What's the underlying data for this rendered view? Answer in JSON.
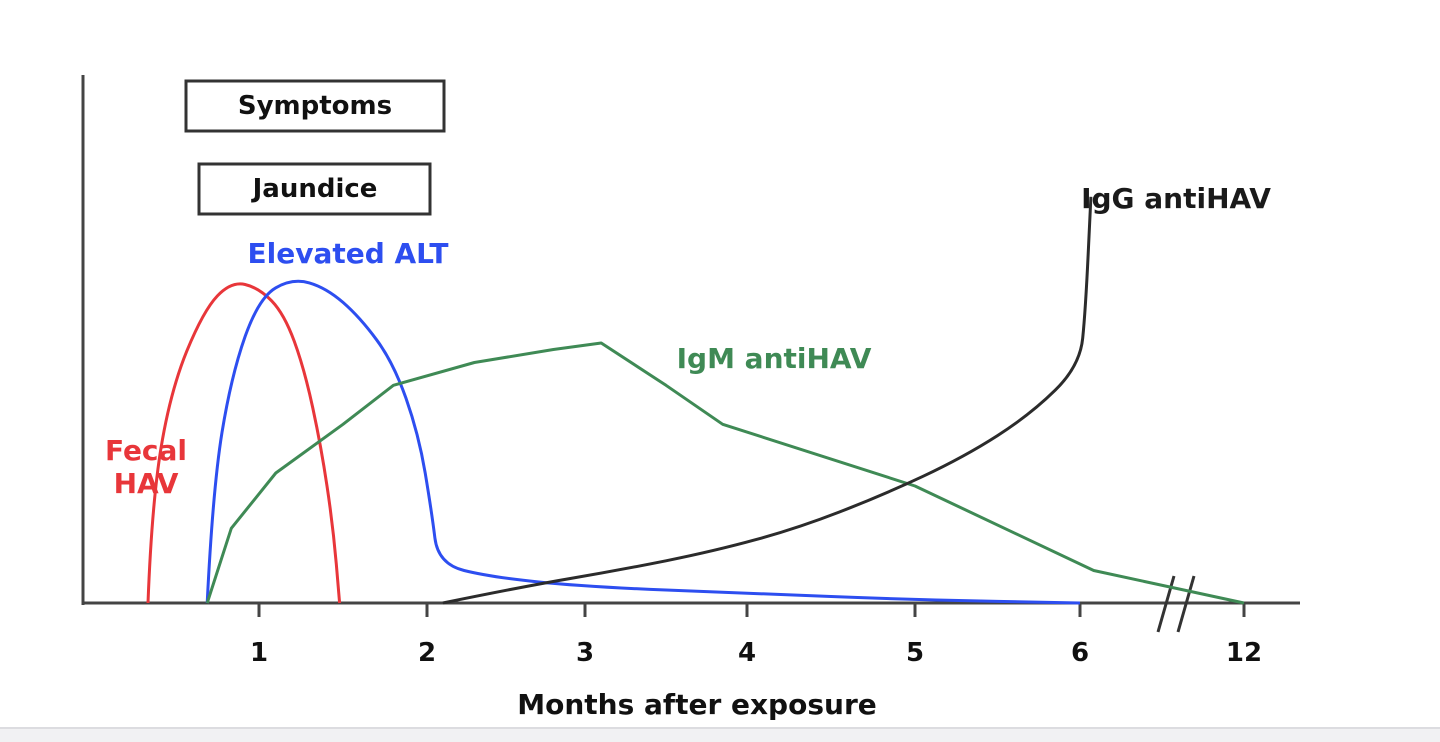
{
  "chart_data": {
    "type": "line",
    "xlabel": "Months after exposure",
    "ylabel": "",
    "x_ticks": [
      "1",
      "2",
      "3",
      "4",
      "5",
      "6",
      "12"
    ],
    "axis_break_between": [
      "6",
      "12"
    ],
    "boxes": [
      {
        "label": "Symptoms"
      },
      {
        "label": "Jaundice"
      }
    ],
    "series": [
      {
        "name": "Fecal HAV",
        "label_lines": [
          "Fecal",
          "HAV"
        ],
        "color": "#e8363a",
        "points": [
          [
            0.4,
            0
          ],
          [
            0.42,
            0.3
          ],
          [
            0.52,
            0.65
          ],
          [
            0.7,
            0.9
          ],
          [
            0.85,
            0.99
          ],
          [
            1.0,
            0.97
          ],
          [
            1.15,
            0.89
          ],
          [
            1.27,
            0.72
          ],
          [
            1.37,
            0.48
          ],
          [
            1.44,
            0.24
          ],
          [
            1.48,
            0
          ]
        ]
      },
      {
        "name": "Elevated ALT",
        "color": "#2d4ef0",
        "points": [
          [
            0.72,
            0
          ],
          [
            0.75,
            0.35
          ],
          [
            0.85,
            0.7
          ],
          [
            1.0,
            0.94
          ],
          [
            1.2,
            1.0
          ],
          [
            1.4,
            0.97
          ],
          [
            1.6,
            0.88
          ],
          [
            1.8,
            0.74
          ],
          [
            1.95,
            0.52
          ],
          [
            2.03,
            0.28
          ],
          [
            2.07,
            0.12
          ],
          [
            2.4,
            0.08
          ],
          [
            3.0,
            0.05
          ],
          [
            4.0,
            0.03
          ],
          [
            5.0,
            0.01
          ],
          [
            6.0,
            0.0
          ]
        ]
      },
      {
        "name": "IgM antiHAV",
        "color": "#3f8a55",
        "points": [
          [
            0.72,
            0
          ],
          [
            0.85,
            0.23
          ],
          [
            1.1,
            0.4
          ],
          [
            1.5,
            0.55
          ],
          [
            1.8,
            0.67
          ],
          [
            2.3,
            0.74
          ],
          [
            2.8,
            0.78
          ],
          [
            3.1,
            0.8
          ],
          [
            3.5,
            0.67
          ],
          [
            3.85,
            0.55
          ],
          [
            5.0,
            0.36
          ],
          [
            6.5,
            0.1
          ],
          [
            12,
            0
          ]
        ]
      },
      {
        "name": "IgG antiHAV",
        "color": "#2b2b2b",
        "points": [
          [
            2.1,
            0
          ],
          [
            2.6,
            0.05
          ],
          [
            3.2,
            0.1
          ],
          [
            3.8,
            0.16
          ],
          [
            4.3,
            0.23
          ],
          [
            4.8,
            0.33
          ],
          [
            5.3,
            0.45
          ],
          [
            5.7,
            0.58
          ],
          [
            6.0,
            0.73
          ],
          [
            6.2,
            0.9
          ],
          [
            6.4,
            1.25
          ]
        ]
      }
    ]
  }
}
